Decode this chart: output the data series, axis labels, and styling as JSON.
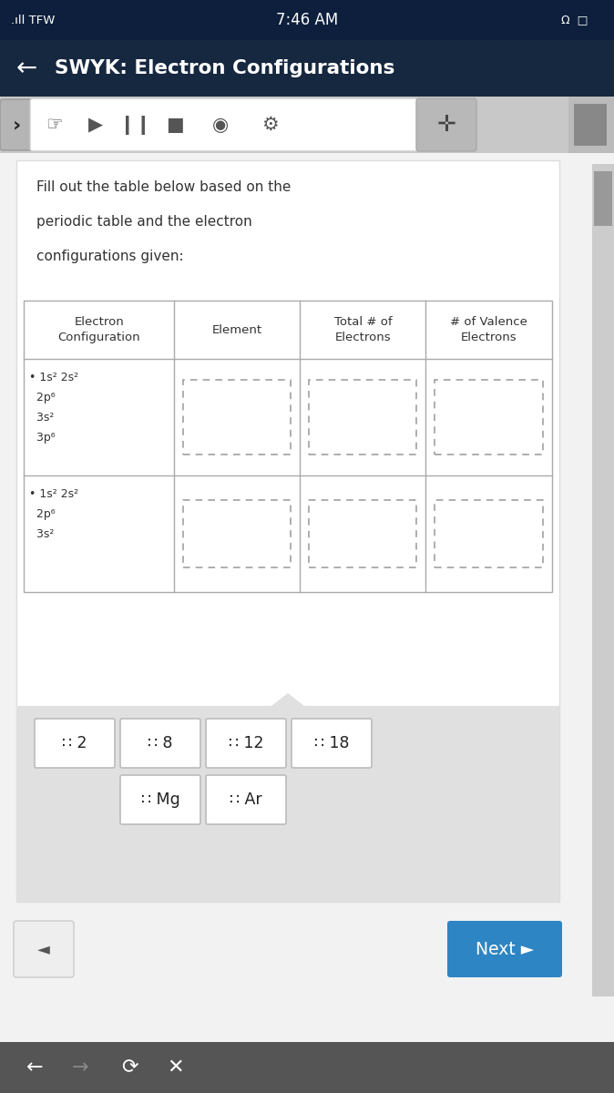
{
  "status_bar_bg": "#0d1f3c",
  "header_bg": "#162740",
  "header_text": "SWYK: Electron Configurations",
  "toolbar_bg": "#c8c8c8",
  "toolbar_white_bg": "#ffffff",
  "body_bg": "#f2f2f2",
  "card_bg": "#ffffff",
  "table_headers": [
    "Electron\nConfiguration",
    "Element",
    "Total # of\nElectrons",
    "# of Valence\nElectrons"
  ],
  "row1_config_lines": [
    "• 1s² 2s²",
    "  2p⁶",
    "  3s²",
    "  3p⁶"
  ],
  "row2_config_lines": [
    "• 1s² 2s²",
    "  2p⁶",
    "  3s²"
  ],
  "answer_chips_row1": [
    "∷ 2",
    "∷ 8",
    "∷ 12",
    "∷ 18"
  ],
  "answer_chips_row2": [
    "∷ Mg",
    "∷ Ar"
  ],
  "dashed_box_color": "#999999",
  "next_btn_bg": "#2e85c3",
  "next_btn_text": "Next ►",
  "bottom_bar_bg": "#555555",
  "chips_area_bg": "#e0e0e0",
  "scrollbar_bg": "#b0b0b0",
  "scrollbar_handle": "#888888"
}
